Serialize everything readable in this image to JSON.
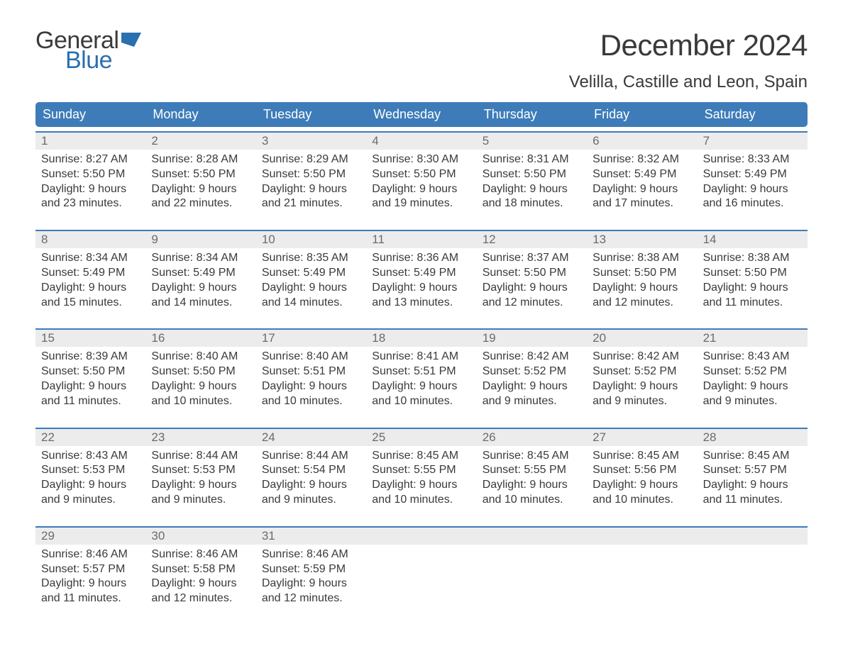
{
  "logo": {
    "text_general": "General",
    "text_blue": "Blue",
    "flag_color": "#2a6fb0"
  },
  "title": "December 2024",
  "location": "Velilla, Castille and Leon, Spain",
  "colors": {
    "header_bg": "#3d7cb8",
    "header_text": "#ffffff",
    "row_border": "#3d7cb8",
    "daynum_bg": "#ececec",
    "body_text": "#3a3a3a",
    "daynum_text": "#6b6b6b",
    "page_bg": "#ffffff"
  },
  "weekday_headers": [
    "Sunday",
    "Monday",
    "Tuesday",
    "Wednesday",
    "Thursday",
    "Friday",
    "Saturday"
  ],
  "weeks": [
    {
      "days": [
        {
          "n": "1",
          "sunrise": "8:27 AM",
          "sunset": "5:50 PM",
          "daylight": "9 hours and 23 minutes."
        },
        {
          "n": "2",
          "sunrise": "8:28 AM",
          "sunset": "5:50 PM",
          "daylight": "9 hours and 22 minutes."
        },
        {
          "n": "3",
          "sunrise": "8:29 AM",
          "sunset": "5:50 PM",
          "daylight": "9 hours and 21 minutes."
        },
        {
          "n": "4",
          "sunrise": "8:30 AM",
          "sunset": "5:50 PM",
          "daylight": "9 hours and 19 minutes."
        },
        {
          "n": "5",
          "sunrise": "8:31 AM",
          "sunset": "5:50 PM",
          "daylight": "9 hours and 18 minutes."
        },
        {
          "n": "6",
          "sunrise": "8:32 AM",
          "sunset": "5:49 PM",
          "daylight": "9 hours and 17 minutes."
        },
        {
          "n": "7",
          "sunrise": "8:33 AM",
          "sunset": "5:49 PM",
          "daylight": "9 hours and 16 minutes."
        }
      ]
    },
    {
      "days": [
        {
          "n": "8",
          "sunrise": "8:34 AM",
          "sunset": "5:49 PM",
          "daylight": "9 hours and 15 minutes."
        },
        {
          "n": "9",
          "sunrise": "8:34 AM",
          "sunset": "5:49 PM",
          "daylight": "9 hours and 14 minutes."
        },
        {
          "n": "10",
          "sunrise": "8:35 AM",
          "sunset": "5:49 PM",
          "daylight": "9 hours and 14 minutes."
        },
        {
          "n": "11",
          "sunrise": "8:36 AM",
          "sunset": "5:49 PM",
          "daylight": "9 hours and 13 minutes."
        },
        {
          "n": "12",
          "sunrise": "8:37 AM",
          "sunset": "5:50 PM",
          "daylight": "9 hours and 12 minutes."
        },
        {
          "n": "13",
          "sunrise": "8:38 AM",
          "sunset": "5:50 PM",
          "daylight": "9 hours and 12 minutes."
        },
        {
          "n": "14",
          "sunrise": "8:38 AM",
          "sunset": "5:50 PM",
          "daylight": "9 hours and 11 minutes."
        }
      ]
    },
    {
      "days": [
        {
          "n": "15",
          "sunrise": "8:39 AM",
          "sunset": "5:50 PM",
          "daylight": "9 hours and 11 minutes."
        },
        {
          "n": "16",
          "sunrise": "8:40 AM",
          "sunset": "5:50 PM",
          "daylight": "9 hours and 10 minutes."
        },
        {
          "n": "17",
          "sunrise": "8:40 AM",
          "sunset": "5:51 PM",
          "daylight": "9 hours and 10 minutes."
        },
        {
          "n": "18",
          "sunrise": "8:41 AM",
          "sunset": "5:51 PM",
          "daylight": "9 hours and 10 minutes."
        },
        {
          "n": "19",
          "sunrise": "8:42 AM",
          "sunset": "5:52 PM",
          "daylight": "9 hours and 9 minutes."
        },
        {
          "n": "20",
          "sunrise": "8:42 AM",
          "sunset": "5:52 PM",
          "daylight": "9 hours and 9 minutes."
        },
        {
          "n": "21",
          "sunrise": "8:43 AM",
          "sunset": "5:52 PM",
          "daylight": "9 hours and 9 minutes."
        }
      ]
    },
    {
      "days": [
        {
          "n": "22",
          "sunrise": "8:43 AM",
          "sunset": "5:53 PM",
          "daylight": "9 hours and 9 minutes."
        },
        {
          "n": "23",
          "sunrise": "8:44 AM",
          "sunset": "5:53 PM",
          "daylight": "9 hours and 9 minutes."
        },
        {
          "n": "24",
          "sunrise": "8:44 AM",
          "sunset": "5:54 PM",
          "daylight": "9 hours and 9 minutes."
        },
        {
          "n": "25",
          "sunrise": "8:45 AM",
          "sunset": "5:55 PM",
          "daylight": "9 hours and 10 minutes."
        },
        {
          "n": "26",
          "sunrise": "8:45 AM",
          "sunset": "5:55 PM",
          "daylight": "9 hours and 10 minutes."
        },
        {
          "n": "27",
          "sunrise": "8:45 AM",
          "sunset": "5:56 PM",
          "daylight": "9 hours and 10 minutes."
        },
        {
          "n": "28",
          "sunrise": "8:45 AM",
          "sunset": "5:57 PM",
          "daylight": "9 hours and 11 minutes."
        }
      ]
    },
    {
      "days": [
        {
          "n": "29",
          "sunrise": "8:46 AM",
          "sunset": "5:57 PM",
          "daylight": "9 hours and 11 minutes."
        },
        {
          "n": "30",
          "sunrise": "8:46 AM",
          "sunset": "5:58 PM",
          "daylight": "9 hours and 12 minutes."
        },
        {
          "n": "31",
          "sunrise": "8:46 AM",
          "sunset": "5:59 PM",
          "daylight": "9 hours and 12 minutes."
        },
        null,
        null,
        null,
        null
      ]
    }
  ],
  "labels": {
    "sunrise": "Sunrise: ",
    "sunset": "Sunset: ",
    "daylight": "Daylight: "
  }
}
